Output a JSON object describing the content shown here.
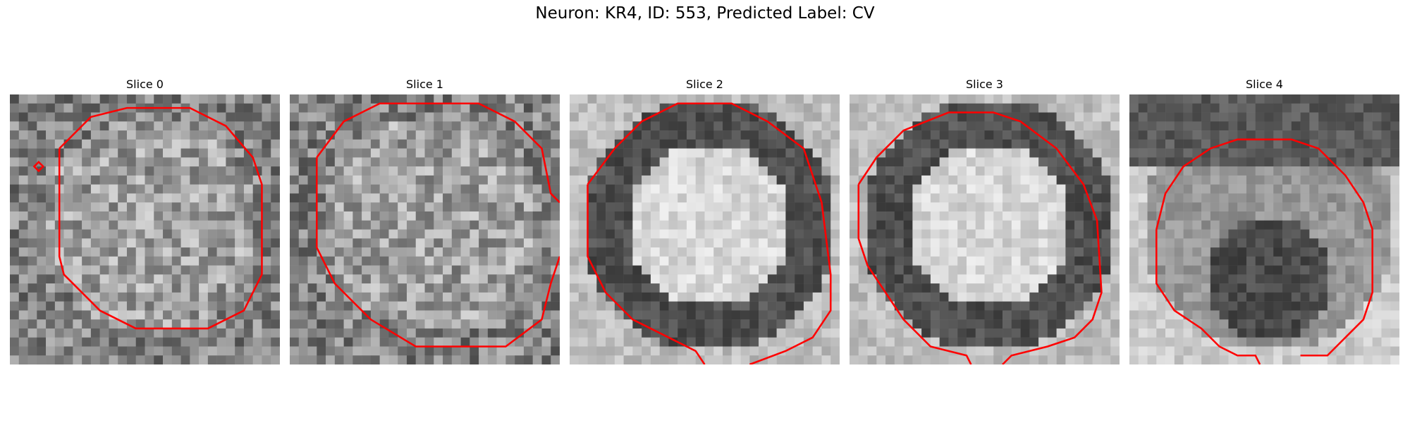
{
  "figure": {
    "title": "Neuron: KR4, ID: 553, Predicted Label: CV"
  },
  "panels": [
    {
      "title": "Slice 0",
      "pattern": "noisy-ring"
    },
    {
      "title": "Slice 1",
      "pattern": "noisy-ring"
    },
    {
      "title": "Slice 2",
      "pattern": "bright-center-dark-ring"
    },
    {
      "title": "Slice 3",
      "pattern": "bright-center-dark-ring"
    },
    {
      "title": "Slice 4",
      "pattern": "dark-lower-center"
    }
  ],
  "colors": {
    "contour": "#ff0000",
    "background": "#ffffff"
  }
}
